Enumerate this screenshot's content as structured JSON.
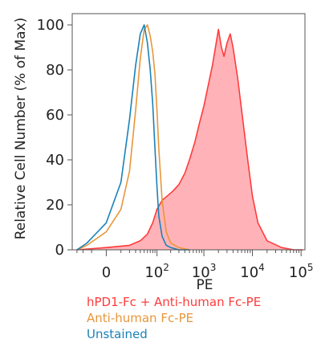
{
  "chart_data": {
    "type": "area",
    "title": "",
    "xlabel": "PE",
    "ylabel": "Relative Cell Number (% of Max)",
    "xscale": "biexponential",
    "xlim": [
      -40,
      120000
    ],
    "ylim": [
      0,
      105
    ],
    "y_ticks": [
      {
        "value": 0,
        "label": "0"
      },
      {
        "value": 20,
        "label": "20"
      },
      {
        "value": 40,
        "label": "40"
      },
      {
        "value": 60,
        "label": "60"
      },
      {
        "value": 80,
        "label": "80"
      },
      {
        "value": 100,
        "label": "100"
      }
    ],
    "x_ticks": [
      {
        "value": 0,
        "base": "0",
        "exp": ""
      },
      {
        "value": 100,
        "base": "10",
        "exp": "2"
      },
      {
        "value": 1000,
        "base": "10",
        "exp": "3"
      },
      {
        "value": 10000,
        "base": "10",
        "exp": "4"
      },
      {
        "value": 100000,
        "base": "10",
        "exp": "5"
      }
    ],
    "grid": false,
    "legend_position": "bottom-left",
    "series": [
      {
        "name": "hPD1-Fc + Anti-human Fc-PE",
        "color": "#ff3b3b",
        "fill": "#ffb3b8",
        "filled": true,
        "x": [
          -30,
          0,
          20,
          40,
          60,
          80,
          100,
          130,
          170,
          220,
          300,
          400,
          500,
          650,
          800,
          1000,
          1200,
          1500,
          1800,
          2000,
          2300,
          2600,
          3000,
          3500,
          4000,
          5000,
          6000,
          8000,
          10000,
          13000,
          20000,
          40000,
          70000,
          110000
        ],
        "y": [
          0,
          1,
          2,
          4,
          7,
          12,
          18,
          22,
          24,
          26,
          29,
          34,
          40,
          48,
          56,
          64,
          72,
          82,
          92,
          98,
          90,
          86,
          92,
          96,
          90,
          76,
          62,
          40,
          24,
          12,
          4,
          1,
          0,
          0
        ]
      },
      {
        "name": "Anti-human Fc-PE",
        "color": "#e8963a",
        "filled": false,
        "x": [
          -30,
          -15,
          0,
          10,
          20,
          30,
          40,
          50,
          60,
          70,
          80,
          90,
          100,
          110,
          130,
          160,
          200,
          300,
          500
        ],
        "y": [
          0,
          2,
          8,
          18,
          35,
          62,
          85,
          98,
          100,
          95,
          88,
          78,
          62,
          45,
          22,
          8,
          3,
          1,
          0
        ]
      },
      {
        "name": "Unstained",
        "color": "#1a82b8",
        "filled": false,
        "x": [
          -30,
          -15,
          0,
          10,
          20,
          30,
          40,
          50,
          60,
          70,
          80,
          90,
          100,
          110,
          130,
          160,
          200,
          300,
          500
        ],
        "y": [
          0,
          3,
          12,
          30,
          58,
          82,
          96,
          100,
          92,
          80,
          65,
          45,
          28,
          15,
          6,
          2,
          1,
          0,
          0
        ]
      }
    ]
  }
}
